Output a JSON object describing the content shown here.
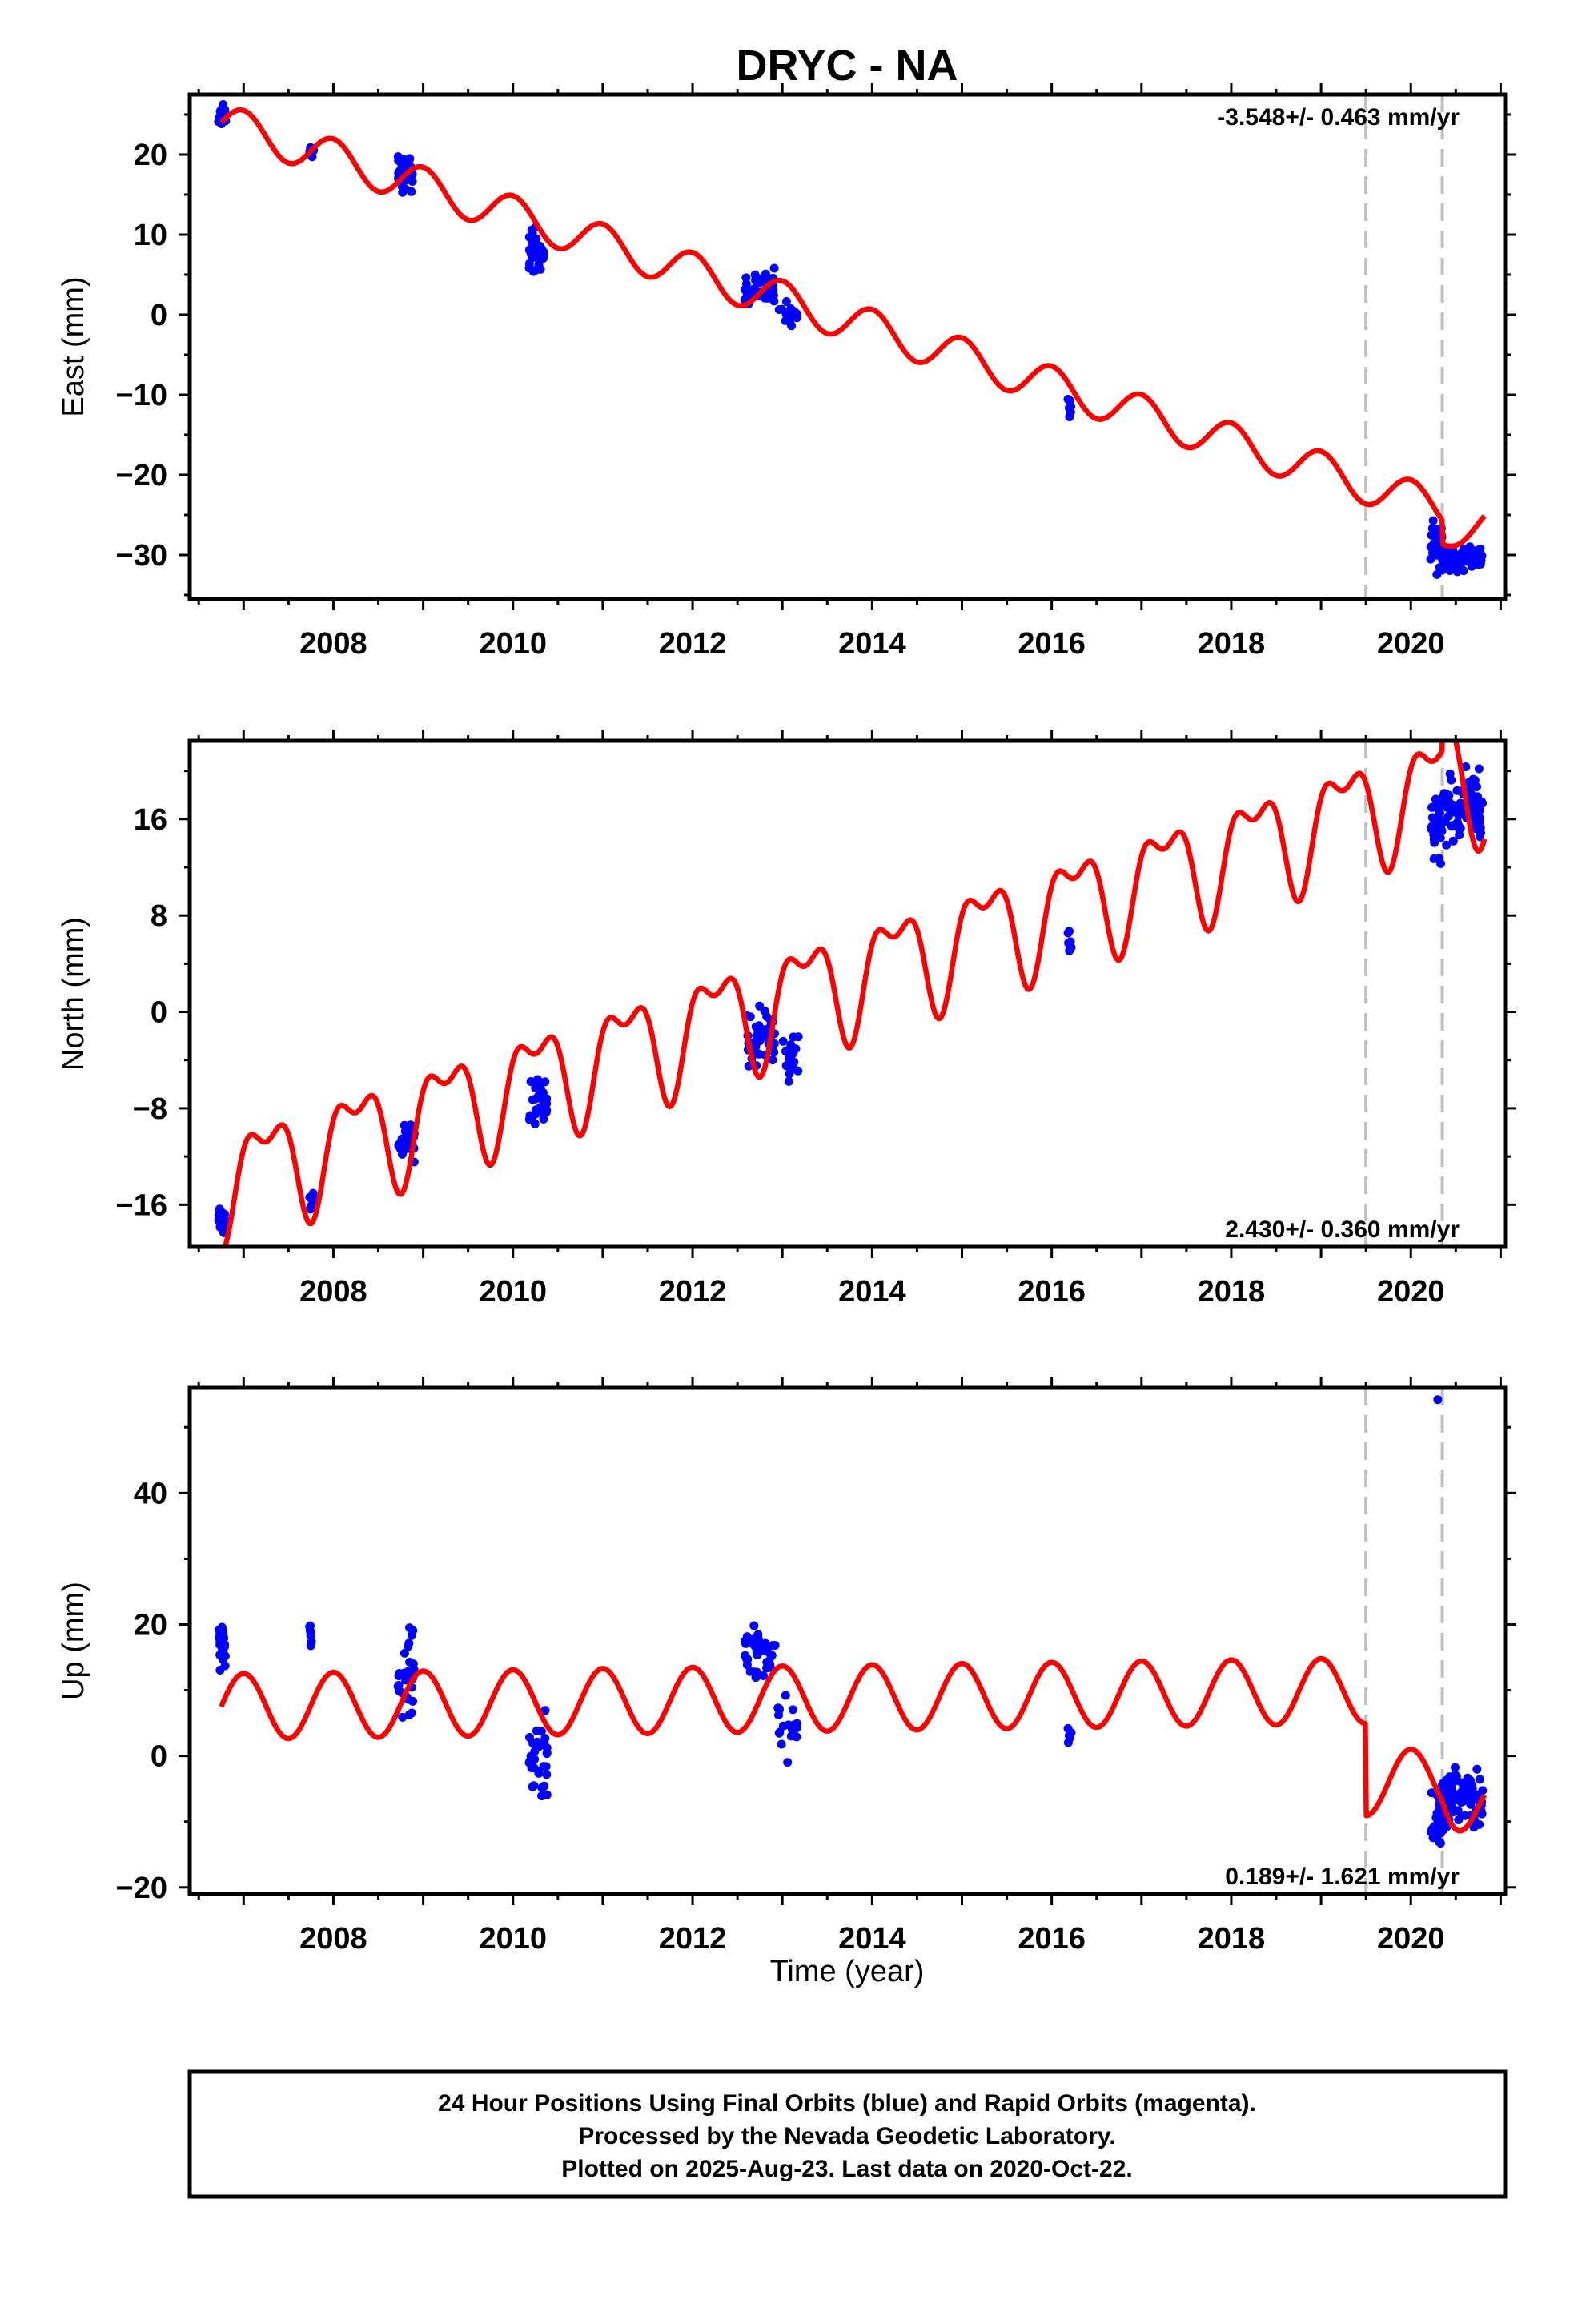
{
  "title": "DRYC - NA",
  "xlabel": "Time (year)",
  "caption": [
    "24 Hour Positions Using Final Orbits (blue) and Rapid Orbits (magenta).",
    "Processed by the Nevada Geodetic Laboratory.",
    "Plotted on 2025-Aug-23. Last data on 2020-Oct-22."
  ],
  "colors": {
    "data": "#0000ff",
    "model": "#ff0000",
    "steps": "#c0c0c0",
    "frame": "#000000"
  },
  "chart_data": [
    {
      "type": "scatter",
      "component": "east",
      "ylabel": "East (mm)",
      "rate_label": "-3.548+/- 0.463 mm/yr",
      "xlim": [
        2006.4,
        2021.05
      ],
      "ylim": [
        -35.5,
        27.5
      ],
      "x_ticks": [
        2008,
        2010,
        2012,
        2014,
        2016,
        2018,
        2020
      ],
      "x_tick_labels": [
        "2008",
        "2010",
        "2012",
        "2014",
        "2016",
        "2018",
        "2020"
      ],
      "y_ticks": [
        -30,
        -20,
        -10,
        0,
        10,
        20
      ],
      "y_tick_labels": [
        "−30",
        "−20",
        "−10",
        "0",
        "10",
        "20"
      ],
      "step_epochs": [
        2019.5,
        2020.35
      ],
      "model": {
        "start": 2006.75,
        "end": 2020.82,
        "intercept": 24.0,
        "rate": -3.548,
        "annual_amplitude": 2.4,
        "annual_phase": 0.0,
        "offsets": [
          {
            "epoch": 2020.35,
            "value": -3.0
          }
        ],
        "postseismic": {
          "epoch": 2020.35,
          "amplitude": 3.5,
          "tau": 0.3
        }
      },
      "clusters": [
        {
          "start": 2006.72,
          "end": 2006.8,
          "count": 20,
          "center": 24.8,
          "spread": 1.6
        },
        {
          "start": 2007.73,
          "end": 2007.78,
          "count": 8,
          "center": 20.5,
          "spread": 0.8
        },
        {
          "start": 2008.72,
          "end": 2008.9,
          "count": 28,
          "center": 17.5,
          "spread": 2.2
        },
        {
          "start": 2010.18,
          "end": 2010.35,
          "count": 30,
          "center": 7.5,
          "spread": 2.5
        },
        {
          "start": 2012.58,
          "end": 2012.92,
          "count": 40,
          "center": 3.5,
          "spread": 1.8
        },
        {
          "start": 2012.95,
          "end": 2013.18,
          "count": 18,
          "center": 0.0,
          "spread": 1.3
        },
        {
          "start": 2016.18,
          "end": 2016.22,
          "count": 6,
          "center": -11.5,
          "spread": 1.5
        },
        {
          "start": 2020.22,
          "end": 2020.35,
          "count": 30,
          "center": -28.0,
          "spread": 2.5
        },
        {
          "start": 2020.35,
          "end": 2020.8,
          "count": 80,
          "center": -30.5,
          "spread": 1.4
        }
      ]
    },
    {
      "type": "scatter",
      "component": "north",
      "ylabel": "North (mm)",
      "rate_label": "2.430+/- 0.360 mm/yr",
      "xlim": [
        2006.4,
        2021.05
      ],
      "ylim": [
        -19.5,
        22.5
      ],
      "x_ticks": [
        2008,
        2010,
        2012,
        2014,
        2016,
        2018,
        2020
      ],
      "x_tick_labels": [
        "2008",
        "2010",
        "2012",
        "2014",
        "2016",
        "2018",
        "2020"
      ],
      "y_ticks": [
        -16,
        -8,
        0,
        8,
        16
      ],
      "y_tick_labels": [
        "−16",
        "−8",
        "0",
        "8",
        "16"
      ],
      "step_epochs": [
        2019.5,
        2020.35
      ],
      "model": {
        "start": 2006.75,
        "end": 2020.82,
        "intercept": -14.0,
        "rate": 2.43,
        "annual_amplitude": 4.0,
        "annual_phase": 0.25,
        "semiannual_amplitude": 2.0,
        "semiannual_phase": 0.0,
        "offsets": [
          {
            "epoch": 2020.35,
            "value": 3.0
          }
        ],
        "postseismic": {
          "epoch": 2020.35,
          "amplitude": -5.0,
          "tau": 0.3
        }
      },
      "clusters": [
        {
          "start": 2006.72,
          "end": 2006.8,
          "count": 20,
          "center": -17.2,
          "spread": 1.2
        },
        {
          "start": 2007.73,
          "end": 2007.78,
          "count": 8,
          "center": -15.5,
          "spread": 0.8
        },
        {
          "start": 2008.72,
          "end": 2008.9,
          "count": 28,
          "center": -10.8,
          "spread": 1.6
        },
        {
          "start": 2010.18,
          "end": 2010.38,
          "count": 30,
          "center": -7.5,
          "spread": 2.0
        },
        {
          "start": 2012.58,
          "end": 2012.92,
          "count": 40,
          "center": -2.5,
          "spread": 2.2
        },
        {
          "start": 2012.95,
          "end": 2013.18,
          "count": 18,
          "center": -4.0,
          "spread": 1.8
        },
        {
          "start": 2016.18,
          "end": 2016.22,
          "count": 6,
          "center": 6.5,
          "spread": 1.2
        },
        {
          "start": 2020.22,
          "end": 2020.35,
          "count": 30,
          "center": 15.5,
          "spread": 2.5
        },
        {
          "start": 2020.35,
          "end": 2020.8,
          "count": 80,
          "center": 17.0,
          "spread": 2.5
        }
      ]
    },
    {
      "type": "scatter",
      "component": "up",
      "ylabel": "Up (mm)",
      "rate_label": "0.189+/- 1.621 mm/yr",
      "xlim": [
        2006.4,
        2021.05
      ],
      "ylim": [
        -21,
        56
      ],
      "x_ticks": [
        2008,
        2010,
        2012,
        2014,
        2016,
        2018,
        2020
      ],
      "x_tick_labels": [
        "2008",
        "2010",
        "2012",
        "2014",
        "2016",
        "2018",
        "2020"
      ],
      "y_ticks": [
        -20,
        0,
        20,
        40
      ],
      "y_tick_labels": [
        "−20",
        "0",
        "20",
        "40"
      ],
      "step_epochs": [
        2019.5,
        2020.35
      ],
      "model": {
        "start": 2006.75,
        "end": 2020.82,
        "intercept": 7.5,
        "rate": 0.189,
        "annual_amplitude": 5.0,
        "annual_phase": 0.0,
        "offsets": [
          {
            "epoch": 2019.5,
            "value": -14.0
          }
        ],
        "postseismic": {
          "epoch": 2020.35,
          "amplitude": -5.0,
          "tau": 0.25
        }
      },
      "clusters": [
        {
          "start": 2006.72,
          "end": 2006.8,
          "count": 22,
          "center": 17.0,
          "spread": 3.5
        },
        {
          "start": 2007.73,
          "end": 2007.78,
          "count": 8,
          "center": 19.0,
          "spread": 1.5
        },
        {
          "start": 2008.72,
          "end": 2008.9,
          "count": 30,
          "center": 12.5,
          "spread": 5.0
        },
        {
          "start": 2010.18,
          "end": 2010.38,
          "count": 32,
          "center": 0.0,
          "spread": 4.5
        },
        {
          "start": 2012.58,
          "end": 2012.92,
          "count": 40,
          "center": 16.0,
          "spread": 3.5
        },
        {
          "start": 2012.95,
          "end": 2013.18,
          "count": 20,
          "center": 4.5,
          "spread": 4.0
        },
        {
          "start": 2016.18,
          "end": 2016.22,
          "count": 6,
          "center": 3.0,
          "spread": 1.5
        },
        {
          "start": 2020.22,
          "end": 2020.35,
          "count": 30,
          "center": -10.0,
          "spread": 4.0
        },
        {
          "start": 2020.35,
          "end": 2020.8,
          "count": 90,
          "center": -6.0,
          "spread": 4.0
        }
      ],
      "outliers": [
        {
          "x": 2020.3,
          "y": 54.2
        }
      ]
    }
  ]
}
